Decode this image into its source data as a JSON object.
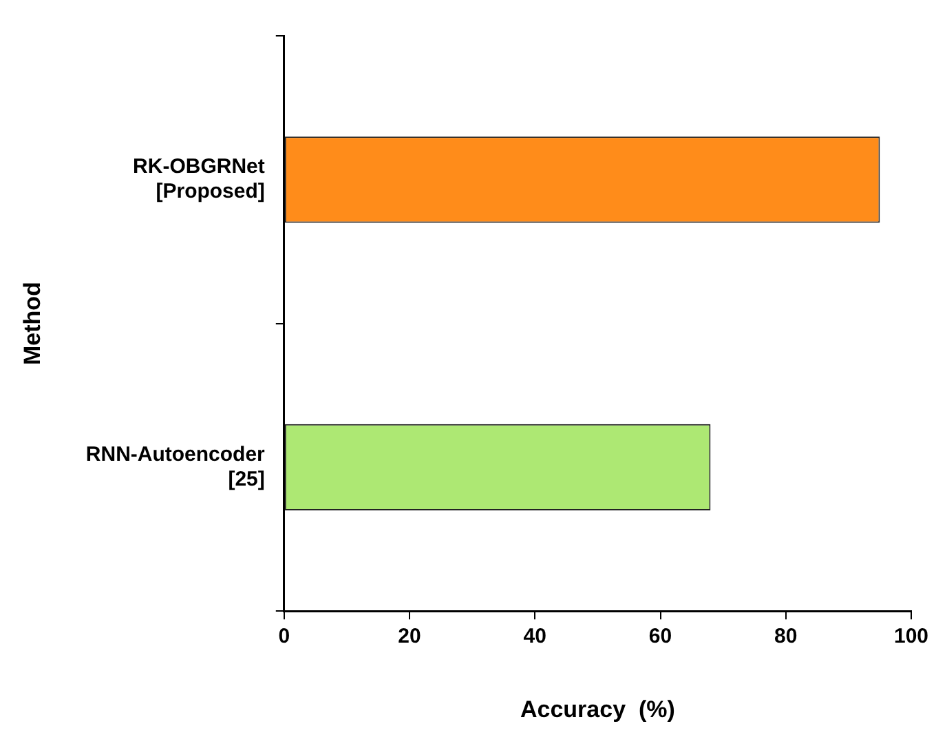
{
  "chart_data": {
    "type": "bar",
    "orientation": "horizontal",
    "xlabel": "Accuracy  (%)",
    "ylabel": "Method",
    "categories": [
      "RK-OBGRNet [Proposed]",
      "RNN-Autoencoder [25]"
    ],
    "values": [
      95,
      68
    ],
    "colors": [
      "#ff8c1a",
      "#ade873"
    ],
    "xlim": [
      0,
      100
    ],
    "xticks": [
      0,
      20,
      40,
      60,
      80,
      100
    ],
    "grid": false,
    "legend": false
  }
}
